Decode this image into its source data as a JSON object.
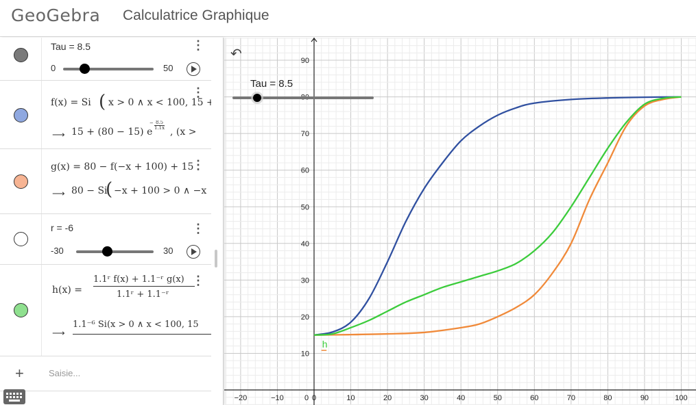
{
  "header": {
    "logo": "GeoGebra",
    "title": "Calculatrice Graphique"
  },
  "algebra": {
    "items": [
      {
        "id": "tau",
        "label": "Tau = 8.5",
        "color": "#7a7a7a",
        "slider": {
          "min": "0",
          "max": "50",
          "value": 8.5
        }
      },
      {
        "id": "f",
        "color": "#8fa8e0",
        "definition_prefix": "f(x) = Si",
        "definition_rest": "x > 0 ∧ x < 100, 15 +",
        "output_prefix": "15 + (80 − 15) e",
        "exp_num": "8.5",
        "exp_den": "1.1x",
        "output_suffix": ",   (x >"
      },
      {
        "id": "g",
        "color": "#f7b493",
        "definition": "g(x) = 80 − f(−x + 100) + 15",
        "output_prefix": "80 − Si",
        "output_rest": "−x + 100 > 0 ∧ −x"
      },
      {
        "id": "r",
        "label": "r = -6",
        "color": "#ffffff",
        "slider": {
          "min": "-30",
          "max": "30",
          "value": -6
        }
      },
      {
        "id": "h",
        "color": "#8fe08f",
        "def_lhs": "h(x) =",
        "def_num": "1.1ʳ f(x) + 1.1⁻ʳ g(x)",
        "def_den": "1.1ʳ + 1.1⁻ʳ",
        "output_num": "1.1⁻⁶ Si(x > 0 ∧ x < 100, 15"
      }
    ],
    "input_placeholder": "Saisie..."
  },
  "graph": {
    "slider_label": "Tau = 8.5",
    "point_label": "h",
    "colors": {
      "f": "#3050a0",
      "g": "#f08a3a",
      "h": "#3ccc3c",
      "axis": "#222",
      "grid_major": "#c8c8c8",
      "grid_minor": "#ececec"
    }
  },
  "chart_data": {
    "type": "line",
    "title": "",
    "xlabel": "",
    "ylabel": "",
    "xlim": [
      -25,
      105
    ],
    "ylim": [
      0,
      97
    ],
    "x_ticks": [
      -20,
      -10,
      0,
      10,
      20,
      30,
      40,
      50,
      60,
      70,
      80,
      90,
      100
    ],
    "y_ticks": [
      10,
      20,
      30,
      40,
      50,
      60,
      70,
      80,
      90
    ],
    "grid": true,
    "series": [
      {
        "key": "f",
        "x": [
          0,
          5,
          10,
          15,
          20,
          25,
          30,
          35,
          40,
          45,
          50,
          55,
          60,
          70,
          80,
          90,
          100
        ],
        "values": [
          15,
          15.8,
          18.5,
          25,
          35,
          46,
          55,
          62,
          68,
          72,
          75,
          77,
          78.3,
          79.3,
          79.7,
          79.9,
          80
        ]
      },
      {
        "key": "g",
        "x": [
          0,
          10,
          20,
          30,
          40,
          45,
          50,
          55,
          60,
          65,
          70,
          75,
          80,
          85,
          90,
          95,
          100
        ],
        "values": [
          15,
          15.1,
          15.3,
          15.7,
          17,
          18,
          20,
          22.5,
          26,
          32,
          40,
          52,
          62,
          72,
          77.5,
          79.3,
          80
        ]
      },
      {
        "key": "h",
        "x": [
          0,
          5,
          10,
          15,
          20,
          25,
          30,
          35,
          40,
          45,
          50,
          55,
          60,
          65,
          70,
          75,
          80,
          85,
          90,
          95,
          100
        ],
        "values": [
          15,
          15.3,
          17,
          19,
          21.5,
          24,
          26,
          28,
          29.5,
          31,
          32.5,
          34.5,
          38,
          43,
          50,
          58,
          66,
          73,
          78,
          79.6,
          80
        ]
      }
    ]
  }
}
